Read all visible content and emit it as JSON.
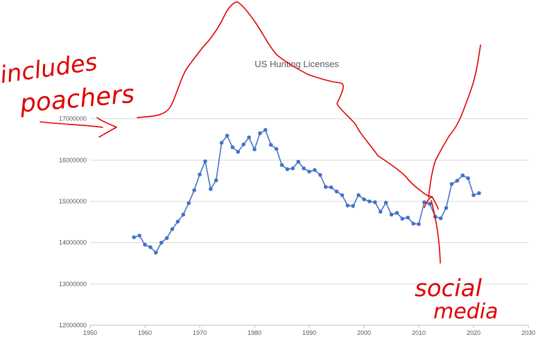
{
  "chart_data": {
    "type": "line",
    "title": "US Hunting Licenses",
    "xlabel": "",
    "ylabel": "",
    "xlim": [
      1950,
      2030
    ],
    "ylim": [
      12000000,
      18000000
    ],
    "x_ticks": [
      1950,
      1960,
      1970,
      1980,
      1990,
      2000,
      2010,
      2020,
      2030
    ],
    "y_ticks": [
      12000000,
      13000000,
      14000000,
      15000000,
      16000000,
      17000000
    ],
    "grid": "horizontal",
    "legend": "none",
    "series_color": "#4472c4",
    "series": [
      {
        "x": [
          1958,
          1959,
          1960,
          1961,
          1962,
          1963,
          1964,
          1965,
          1966,
          1967,
          1968,
          1969,
          1970,
          1971,
          1972,
          1973,
          1974,
          1975,
          1976,
          1977,
          1978,
          1979,
          1980,
          1981,
          1982,
          1983,
          1984,
          1985,
          1986,
          1987,
          1988,
          1989,
          1990,
          1991,
          1992,
          1993,
          1994,
          1995,
          1996,
          1997,
          1998,
          1999,
          2000,
          2001,
          2002,
          2003,
          2004,
          2005,
          2006,
          2007,
          2008,
          2009,
          2010,
          2011,
          2012,
          2013,
          2014,
          2015,
          2016,
          2017,
          2018,
          2019,
          2020,
          2021
        ],
        "y": [
          14130000,
          14170000,
          13950000,
          13890000,
          13760000,
          14000000,
          14110000,
          14330000,
          14510000,
          14680000,
          14960000,
          15270000,
          15650000,
          15970000,
          15300000,
          15510000,
          16420000,
          16590000,
          16310000,
          16200000,
          16380000,
          16550000,
          16260000,
          16650000,
          16730000,
          16370000,
          16270000,
          15880000,
          15780000,
          15800000,
          15960000,
          15800000,
          15720000,
          15760000,
          15640000,
          15350000,
          15340000,
          15240000,
          15150000,
          14900000,
          14890000,
          15150000,
          15050000,
          15000000,
          14980000,
          14750000,
          14970000,
          14680000,
          14720000,
          14580000,
          14610000,
          14460000,
          14450000,
          14980000,
          14940000,
          14630000,
          14590000,
          14840000,
          15420000,
          15500000,
          15630000,
          15560000,
          15150000,
          15200000
        ]
      }
    ]
  },
  "annotations": {
    "color": "#e00000",
    "text_left_1": "includes",
    "text_left_2": "poachers",
    "text_right_1": "social",
    "text_right_2": "media"
  }
}
